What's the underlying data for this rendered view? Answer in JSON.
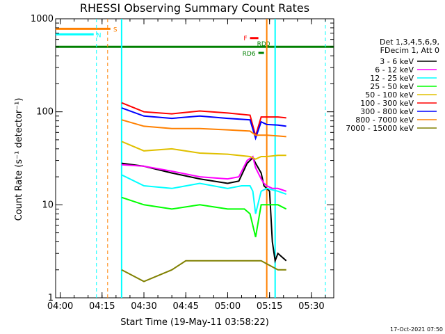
{
  "chart_data": {
    "type": "line",
    "title": "RHESSI Observing Summary Count Rates",
    "xlabel": "Start Time (19-May-11 03:58:22)",
    "ylabel": "Count Rate (s⁻¹ detector⁻¹)",
    "xlim": [
      "03:58:22",
      "05:38:00"
    ],
    "ylim": [
      1,
      1000
    ],
    "y_scale": "log",
    "x_ticks": [
      "04:00",
      "04:15",
      "04:30",
      "04:45",
      "05:00",
      "05:15",
      "05:30"
    ],
    "y_ticks": [
      "1",
      "10",
      "100",
      "1000"
    ],
    "legend": {
      "header": [
        "Det 1,3,4,5,6,9,",
        "FDecim 1, Att 0"
      ],
      "placement": "right"
    },
    "series": [
      {
        "name": "3 - 6 keV",
        "color": "#000000",
        "x": [
          "04:22",
          "04:30",
          "04:40",
          "04:50",
          "05:00",
          "05:04",
          "05:07",
          "05:09",
          "05:10",
          "05:12",
          "05:13",
          "05:14",
          "05:15",
          "05:16",
          "05:17",
          "05:18",
          "05:21"
        ],
        "y": [
          28,
          26,
          22,
          19,
          17,
          18,
          28,
          32,
          28,
          22,
          16,
          15,
          14,
          4,
          2.5,
          3,
          2.5
        ]
      },
      {
        "name": "6 - 12 keV",
        "color": "#ff00ff",
        "x": [
          "04:22",
          "04:30",
          "04:40",
          "04:50",
          "05:00",
          "05:04",
          "05:07",
          "05:09",
          "05:10",
          "05:12",
          "05:13",
          "05:14",
          "05:16",
          "05:18",
          "05:21"
        ],
        "y": [
          27,
          26,
          23,
          20,
          19,
          20,
          30,
          33,
          25,
          19,
          17,
          16,
          15,
          15,
          14
        ]
      },
      {
        "name": "12 - 25 keV",
        "color": "#00ffff",
        "x": [
          "04:22",
          "04:30",
          "04:40",
          "04:50",
          "05:00",
          "05:05",
          "05:08",
          "05:09",
          "05:10",
          "05:12",
          "05:14",
          "05:18",
          "05:21"
        ],
        "y": [
          21,
          16,
          15,
          17,
          15,
          16,
          16,
          14,
          8,
          14,
          15,
          14,
          13
        ]
      },
      {
        "name": "25 - 50 keV",
        "color": "#00ff00",
        "x": [
          "04:22",
          "04:30",
          "04:40",
          "04:50",
          "05:00",
          "05:06",
          "05:08",
          "05:09",
          "05:10",
          "05:12",
          "05:14",
          "05:18",
          "05:21"
        ],
        "y": [
          12,
          10,
          9,
          10,
          9,
          9,
          8,
          6,
          4.5,
          10,
          10,
          10,
          9
        ]
      },
      {
        "name": "50 - 100 keV",
        "color": "#e0c000",
        "x": [
          "04:22",
          "04:30",
          "04:40",
          "04:50",
          "05:00",
          "05:08",
          "05:10",
          "05:12",
          "05:14",
          "05:18",
          "05:21"
        ],
        "y": [
          48,
          38,
          40,
          36,
          35,
          33,
          31,
          33,
          33,
          34,
          34
        ]
      },
      {
        "name": "100 - 300 keV",
        "color": "#ff0000",
        "x": [
          "04:22",
          "04:30",
          "04:40",
          "04:50",
          "05:00",
          "05:08",
          "05:10",
          "05:12",
          "05:14",
          "05:18",
          "05:21"
        ],
        "y": [
          125,
          100,
          95,
          102,
          97,
          92,
          55,
          88,
          88,
          88,
          86
        ]
      },
      {
        "name": "300 - 800 keV",
        "color": "#0000ff",
        "x": [
          "04:22",
          "04:30",
          "04:40",
          "04:50",
          "05:00",
          "05:08",
          "05:10",
          "05:12",
          "05:14",
          "05:18",
          "05:21"
        ],
        "y": [
          110,
          90,
          85,
          90,
          85,
          82,
          52,
          78,
          73,
          72,
          70
        ]
      },
      {
        "name": "800 - 7000 keV",
        "color": "#ff8000",
        "x": [
          "04:22",
          "04:30",
          "04:40",
          "04:50",
          "05:00",
          "05:08",
          "05:10",
          "05:12",
          "05:14",
          "05:18",
          "05:21"
        ],
        "y": [
          82,
          70,
          66,
          66,
          64,
          62,
          56,
          56,
          56,
          55,
          54
        ]
      },
      {
        "name": "7000 - 15000 keV",
        "color": "#808000",
        "x": [
          "04:22",
          "04:30",
          "04:40",
          "04:45",
          "04:50",
          "05:00",
          "05:08",
          "05:12",
          "05:18",
          "05:21"
        ],
        "y": [
          2,
          1.5,
          2,
          2.5,
          2.5,
          2.5,
          2.5,
          2.5,
          2,
          2
        ]
      }
    ],
    "flags": [
      {
        "label": "S",
        "color": "#ff8000",
        "x": [
          "03:58:22",
          "04:18"
        ],
        "y": 780
      },
      {
        "label": "N",
        "color": "#00ffff",
        "x": [
          "03:58:22",
          "04:12"
        ],
        "y": 680
      },
      {
        "label": "F",
        "color": "#ff0000",
        "x": [
          "05:08",
          "05:11"
        ],
        "y": 620
      },
      {
        "label": "RD0",
        "color": "#008000",
        "x": [
          "03:58:22",
          "05:38"
        ],
        "y": 500
      },
      {
        "label": "RD6",
        "color": "#008000",
        "x": [
          "05:11",
          "05:13"
        ],
        "y": 430
      }
    ],
    "vertical_lines": [
      {
        "x": "04:13",
        "color": "#00ffff",
        "style": "dashed"
      },
      {
        "x": "04:17",
        "color": "#ff8000",
        "style": "dashed"
      },
      {
        "x": "04:22",
        "color": "#00ffff",
        "style": "solid"
      },
      {
        "x": "05:14",
        "color": "#ff8000",
        "style": "solid"
      },
      {
        "x": "05:17",
        "color": "#00ffff",
        "style": "solid"
      },
      {
        "x": "05:35",
        "color": "#00ffff",
        "style": "dashed"
      }
    ],
    "grid": false
  },
  "footer": {
    "timestamp": "17-Oct-2021 07:50"
  }
}
